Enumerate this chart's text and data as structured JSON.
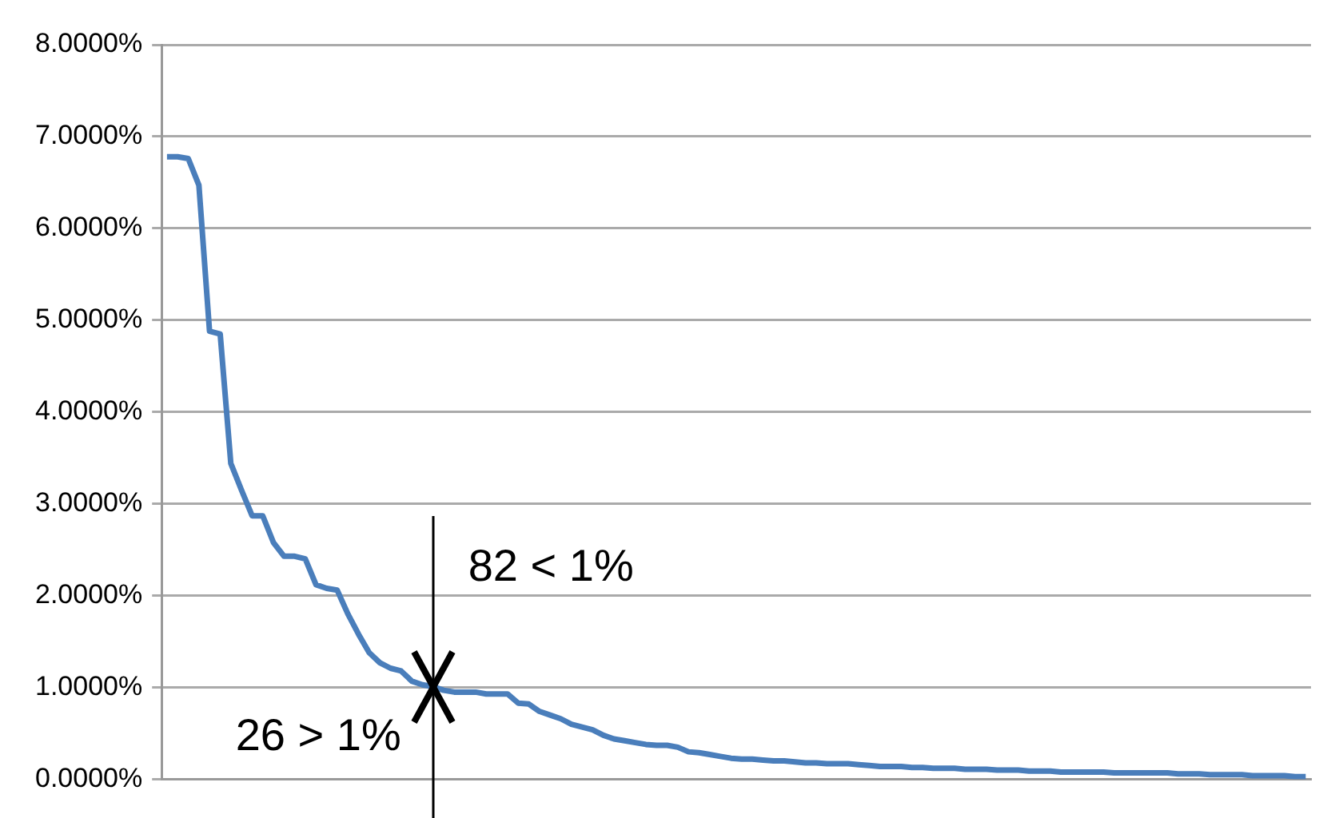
{
  "chart_data": {
    "type": "line",
    "categories": [
      null,
      null,
      null,
      null,
      null,
      null,
      null,
      null,
      null,
      null,
      null,
      null,
      null,
      null,
      null,
      null,
      null,
      null,
      null,
      null,
      null,
      null,
      null,
      null,
      null,
      null,
      null,
      null,
      null,
      null,
      null,
      null,
      null,
      null,
      null,
      null,
      null,
      null,
      null,
      null,
      null,
      null,
      null,
      null,
      null,
      null,
      null,
      null,
      null,
      null,
      null,
      null,
      null,
      null,
      null,
      null,
      null,
      null,
      null,
      null,
      null,
      null,
      null,
      null,
      null,
      null,
      null,
      null,
      null,
      null,
      null,
      null,
      null,
      null,
      null,
      null,
      null,
      null,
      null,
      null,
      null,
      null,
      null,
      null,
      null,
      null,
      null,
      null,
      null,
      null,
      null,
      null,
      null,
      null,
      null,
      null,
      null,
      null,
      null,
      null,
      null,
      null,
      null,
      null,
      null,
      null,
      null,
      null
    ],
    "series": [
      {
        "color": "#4a7ebb",
        "values": [
          6.78,
          6.78,
          6.76,
          6.47,
          4.88,
          4.85,
          3.44,
          3.15,
          2.87,
          2.87,
          2.58,
          2.43,
          2.43,
          2.4,
          2.12,
          2.08,
          2.06,
          1.8,
          1.58,
          1.38,
          1.27,
          1.21,
          1.18,
          1.07,
          1.03,
          1.01,
          0.97,
          0.95,
          0.95,
          0.95,
          0.93,
          0.93,
          0.93,
          0.83,
          0.82,
          0.74,
          0.7,
          0.66,
          0.6,
          0.57,
          0.54,
          0.48,
          0.44,
          0.42,
          0.4,
          0.38,
          0.37,
          0.37,
          0.35,
          0.3,
          0.29,
          0.27,
          0.25,
          0.23,
          0.22,
          0.22,
          0.21,
          0.2,
          0.2,
          0.19,
          0.18,
          0.18,
          0.17,
          0.17,
          0.17,
          0.16,
          0.15,
          0.14,
          0.14,
          0.14,
          0.13,
          0.13,
          0.12,
          0.12,
          0.12,
          0.11,
          0.11,
          0.11,
          0.1,
          0.1,
          0.1,
          0.09,
          0.09,
          0.09,
          0.08,
          0.08,
          0.08,
          0.08,
          0.08,
          0.07,
          0.07,
          0.07,
          0.07,
          0.07,
          0.07,
          0.06,
          0.06,
          0.06,
          0.05,
          0.05,
          0.05,
          0.05,
          0.04,
          0.04,
          0.04,
          0.04,
          0.03,
          0.03
        ]
      }
    ],
    "ylim": [
      0,
      8
    ],
    "yticks": [
      {
        "value": 0,
        "label": "0.0000%"
      },
      {
        "value": 1,
        "label": "1.0000%"
      },
      {
        "value": 2,
        "label": "2.0000%"
      },
      {
        "value": 3,
        "label": "3.0000%"
      },
      {
        "value": 4,
        "label": "4.0000%"
      },
      {
        "value": 5,
        "label": "5.0000%"
      },
      {
        "value": 6,
        "label": "6.0000%"
      },
      {
        "value": 7,
        "label": "7.0000%"
      },
      {
        "value": 8,
        "label": "8.0000%"
      }
    ],
    "annotations": [
      "82 < 1%",
      "26 > 1%"
    ],
    "grid": "y",
    "legend": false,
    "tick_labels": "y",
    "marker": "none",
    "line_style": "solid"
  }
}
